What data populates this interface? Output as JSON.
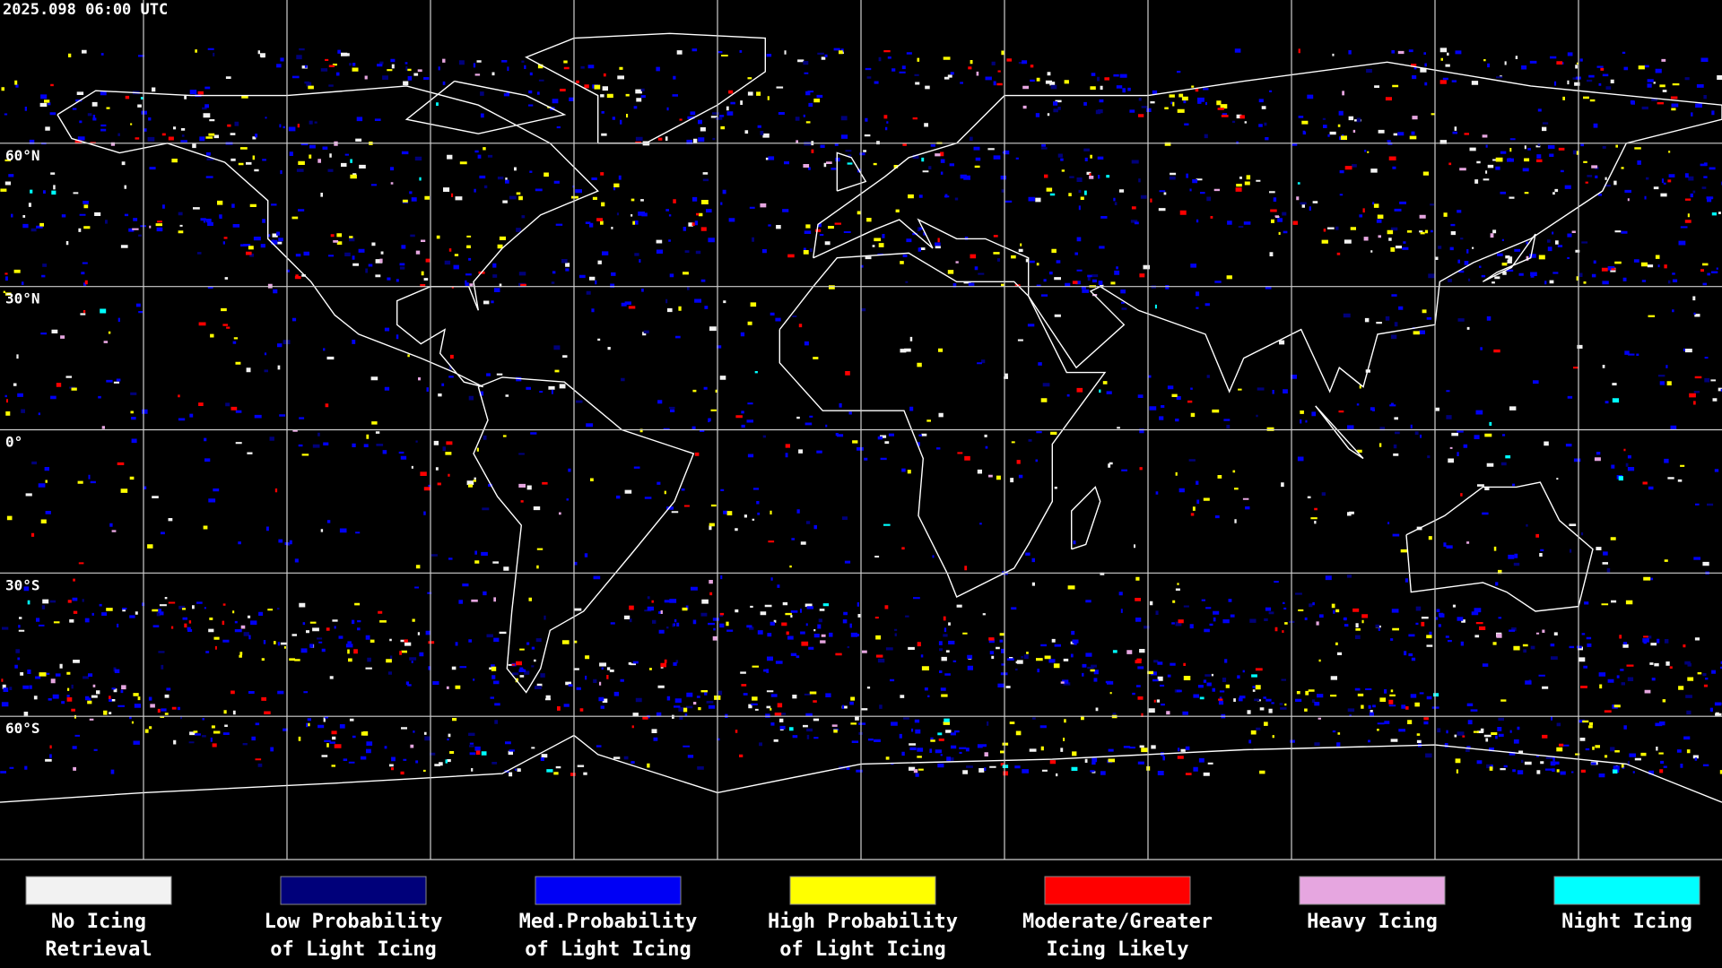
{
  "timestamp": "2025.098 06:00 UTC",
  "latitude_labels": [
    "60°N",
    "30°N",
    "0°",
    "30°S",
    "60°S"
  ],
  "legend": [
    {
      "color": "#f2f2f2",
      "label": [
        "No Icing",
        "Retrieval"
      ]
    },
    {
      "color": "#00007a",
      "label": [
        "Low Probability",
        "of Light Icing"
      ]
    },
    {
      "color": "#0000f5",
      "label": [
        "Med.Probability",
        "of Light Icing"
      ]
    },
    {
      "color": "#ffff00",
      "label": [
        "High Probability",
        "of Light Icing"
      ]
    },
    {
      "color": "#ff0000",
      "label": [
        "Moderate/Greater",
        "Icing Likely"
      ]
    },
    {
      "color": "#e6a6e0",
      "label": [
        "Heavy Icing",
        ""
      ]
    },
    {
      "color": "#00ffff",
      "label": [
        "Night Icing",
        ""
      ]
    }
  ]
}
